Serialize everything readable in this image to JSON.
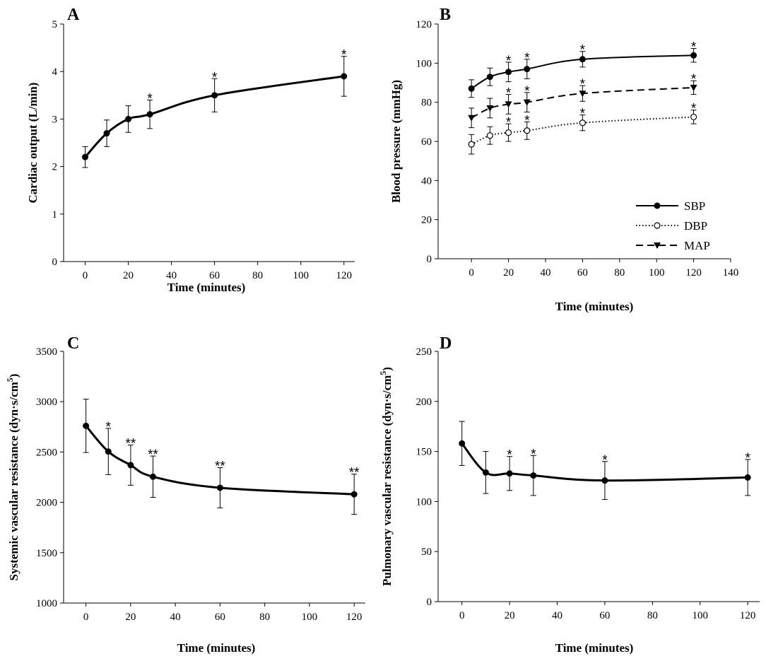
{
  "colors": {
    "ink": "#000000",
    "background": "#ffffff",
    "open_marker_fill": "#ffffff"
  },
  "chart_data": [
    {
      "type": "line",
      "panel": "A",
      "xlabel": "Time (minutes)",
      "ylabel": "Cardiac output (L/min)",
      "xlim": [
        -10,
        125
      ],
      "ylim": [
        0,
        5
      ],
      "xticks": [
        0,
        20,
        40,
        60,
        80,
        100,
        120
      ],
      "yticks": [
        0,
        1,
        2,
        3,
        4,
        5
      ],
      "series": [
        {
          "name": "Cardiac output",
          "style": "solid",
          "marker": "filled-circle",
          "x": [
            0,
            10,
            20,
            30,
            60,
            120
          ],
          "values": [
            2.2,
            2.7,
            3.0,
            3.1,
            3.5,
            3.9
          ],
          "errors": [
            0.22,
            0.28,
            0.28,
            0.3,
            0.35,
            0.42
          ],
          "annotations": [
            "",
            "",
            "",
            "*",
            "*",
            "*"
          ]
        }
      ]
    },
    {
      "type": "line",
      "panel": "B",
      "xlabel": "Time (minutes)",
      "ylabel": "Blood pressure (mmHg)",
      "xlim": [
        -18,
        140
      ],
      "ylim": [
        0,
        120
      ],
      "xticks": [
        0,
        20,
        40,
        60,
        80,
        100,
        120,
        140
      ],
      "yticks": [
        0,
        20,
        40,
        60,
        80,
        100,
        120
      ],
      "legend_position": "bottom-right",
      "series": [
        {
          "name": "SBP",
          "style": "solid",
          "marker": "filled-circle",
          "x": [
            0,
            10,
            20,
            30,
            60,
            120
          ],
          "values": [
            87,
            93,
            95.5,
            97,
            102,
            104
          ],
          "errors": [
            4.5,
            4.5,
            5,
            5,
            4,
            3.5
          ],
          "annotations": [
            "",
            "",
            "*",
            "*",
            "*",
            "*"
          ]
        },
        {
          "name": "DBP",
          "style": "dotted",
          "marker": "open-circle",
          "x": [
            0,
            10,
            20,
            30,
            60,
            120
          ],
          "values": [
            58.5,
            63,
            64.5,
            65.5,
            69.5,
            72.5
          ],
          "errors": [
            5,
            4.5,
            4.5,
            4.5,
            4,
            3.5
          ],
          "annotations": [
            "",
            "",
            "*",
            "*",
            "*",
            "*"
          ]
        },
        {
          "name": "MAP",
          "style": "dashed",
          "marker": "filled-triangle-down",
          "x": [
            0,
            10,
            20,
            30,
            60,
            120
          ],
          "values": [
            72,
            77,
            79,
            80,
            84.5,
            87.5
          ],
          "errors": [
            5,
            5,
            5,
            5,
            4,
            3.5
          ],
          "annotations": [
            "",
            "",
            "*",
            "*",
            "*",
            "*"
          ]
        }
      ]
    },
    {
      "type": "line",
      "panel": "C",
      "xlabel": "Time (minutes)",
      "ylabel": "Systemic vascular resistance (dyn·s/cm",
      "ylabel_superscript": "5",
      "ylabel_close": ")",
      "xlim": [
        -10,
        125
      ],
      "ylim": [
        1000,
        3500
      ],
      "xticks": [
        0,
        20,
        40,
        60,
        80,
        100,
        120
      ],
      "yticks": [
        1000,
        1500,
        2000,
        2500,
        3000,
        3500
      ],
      "series": [
        {
          "name": "Systemic vascular resistance",
          "style": "solid",
          "marker": "filled-circle",
          "x": [
            0,
            10,
            20,
            30,
            60,
            120
          ],
          "values": [
            2760,
            2505,
            2370,
            2255,
            2145,
            2080
          ],
          "errors": [
            265,
            230,
            200,
            205,
            200,
            200
          ],
          "annotations": [
            "",
            "*",
            "**",
            "**",
            "**",
            "**"
          ]
        }
      ]
    },
    {
      "type": "line",
      "panel": "D",
      "xlabel": "Time (minutes)",
      "ylabel": "Pulmonary vascular resistance (dyn·s/cm",
      "ylabel_superscript": "5",
      "ylabel_close": ")",
      "xlim": [
        -10,
        125
      ],
      "ylim": [
        0,
        250
      ],
      "xticks": [
        0,
        20,
        40,
        60,
        80,
        100,
        120
      ],
      "yticks": [
        0,
        50,
        100,
        150,
        200,
        250
      ],
      "series": [
        {
          "name": "Pulmonary vascular resistance",
          "style": "solid",
          "marker": "filled-circle",
          "x": [
            0,
            10,
            20,
            30,
            60,
            120
          ],
          "values": [
            158,
            129,
            128,
            126,
            121,
            124
          ],
          "errors": [
            22,
            21,
            17,
            20,
            19,
            18
          ],
          "annotations": [
            "",
            "",
            "*",
            "*",
            "*",
            "*"
          ]
        }
      ]
    }
  ]
}
